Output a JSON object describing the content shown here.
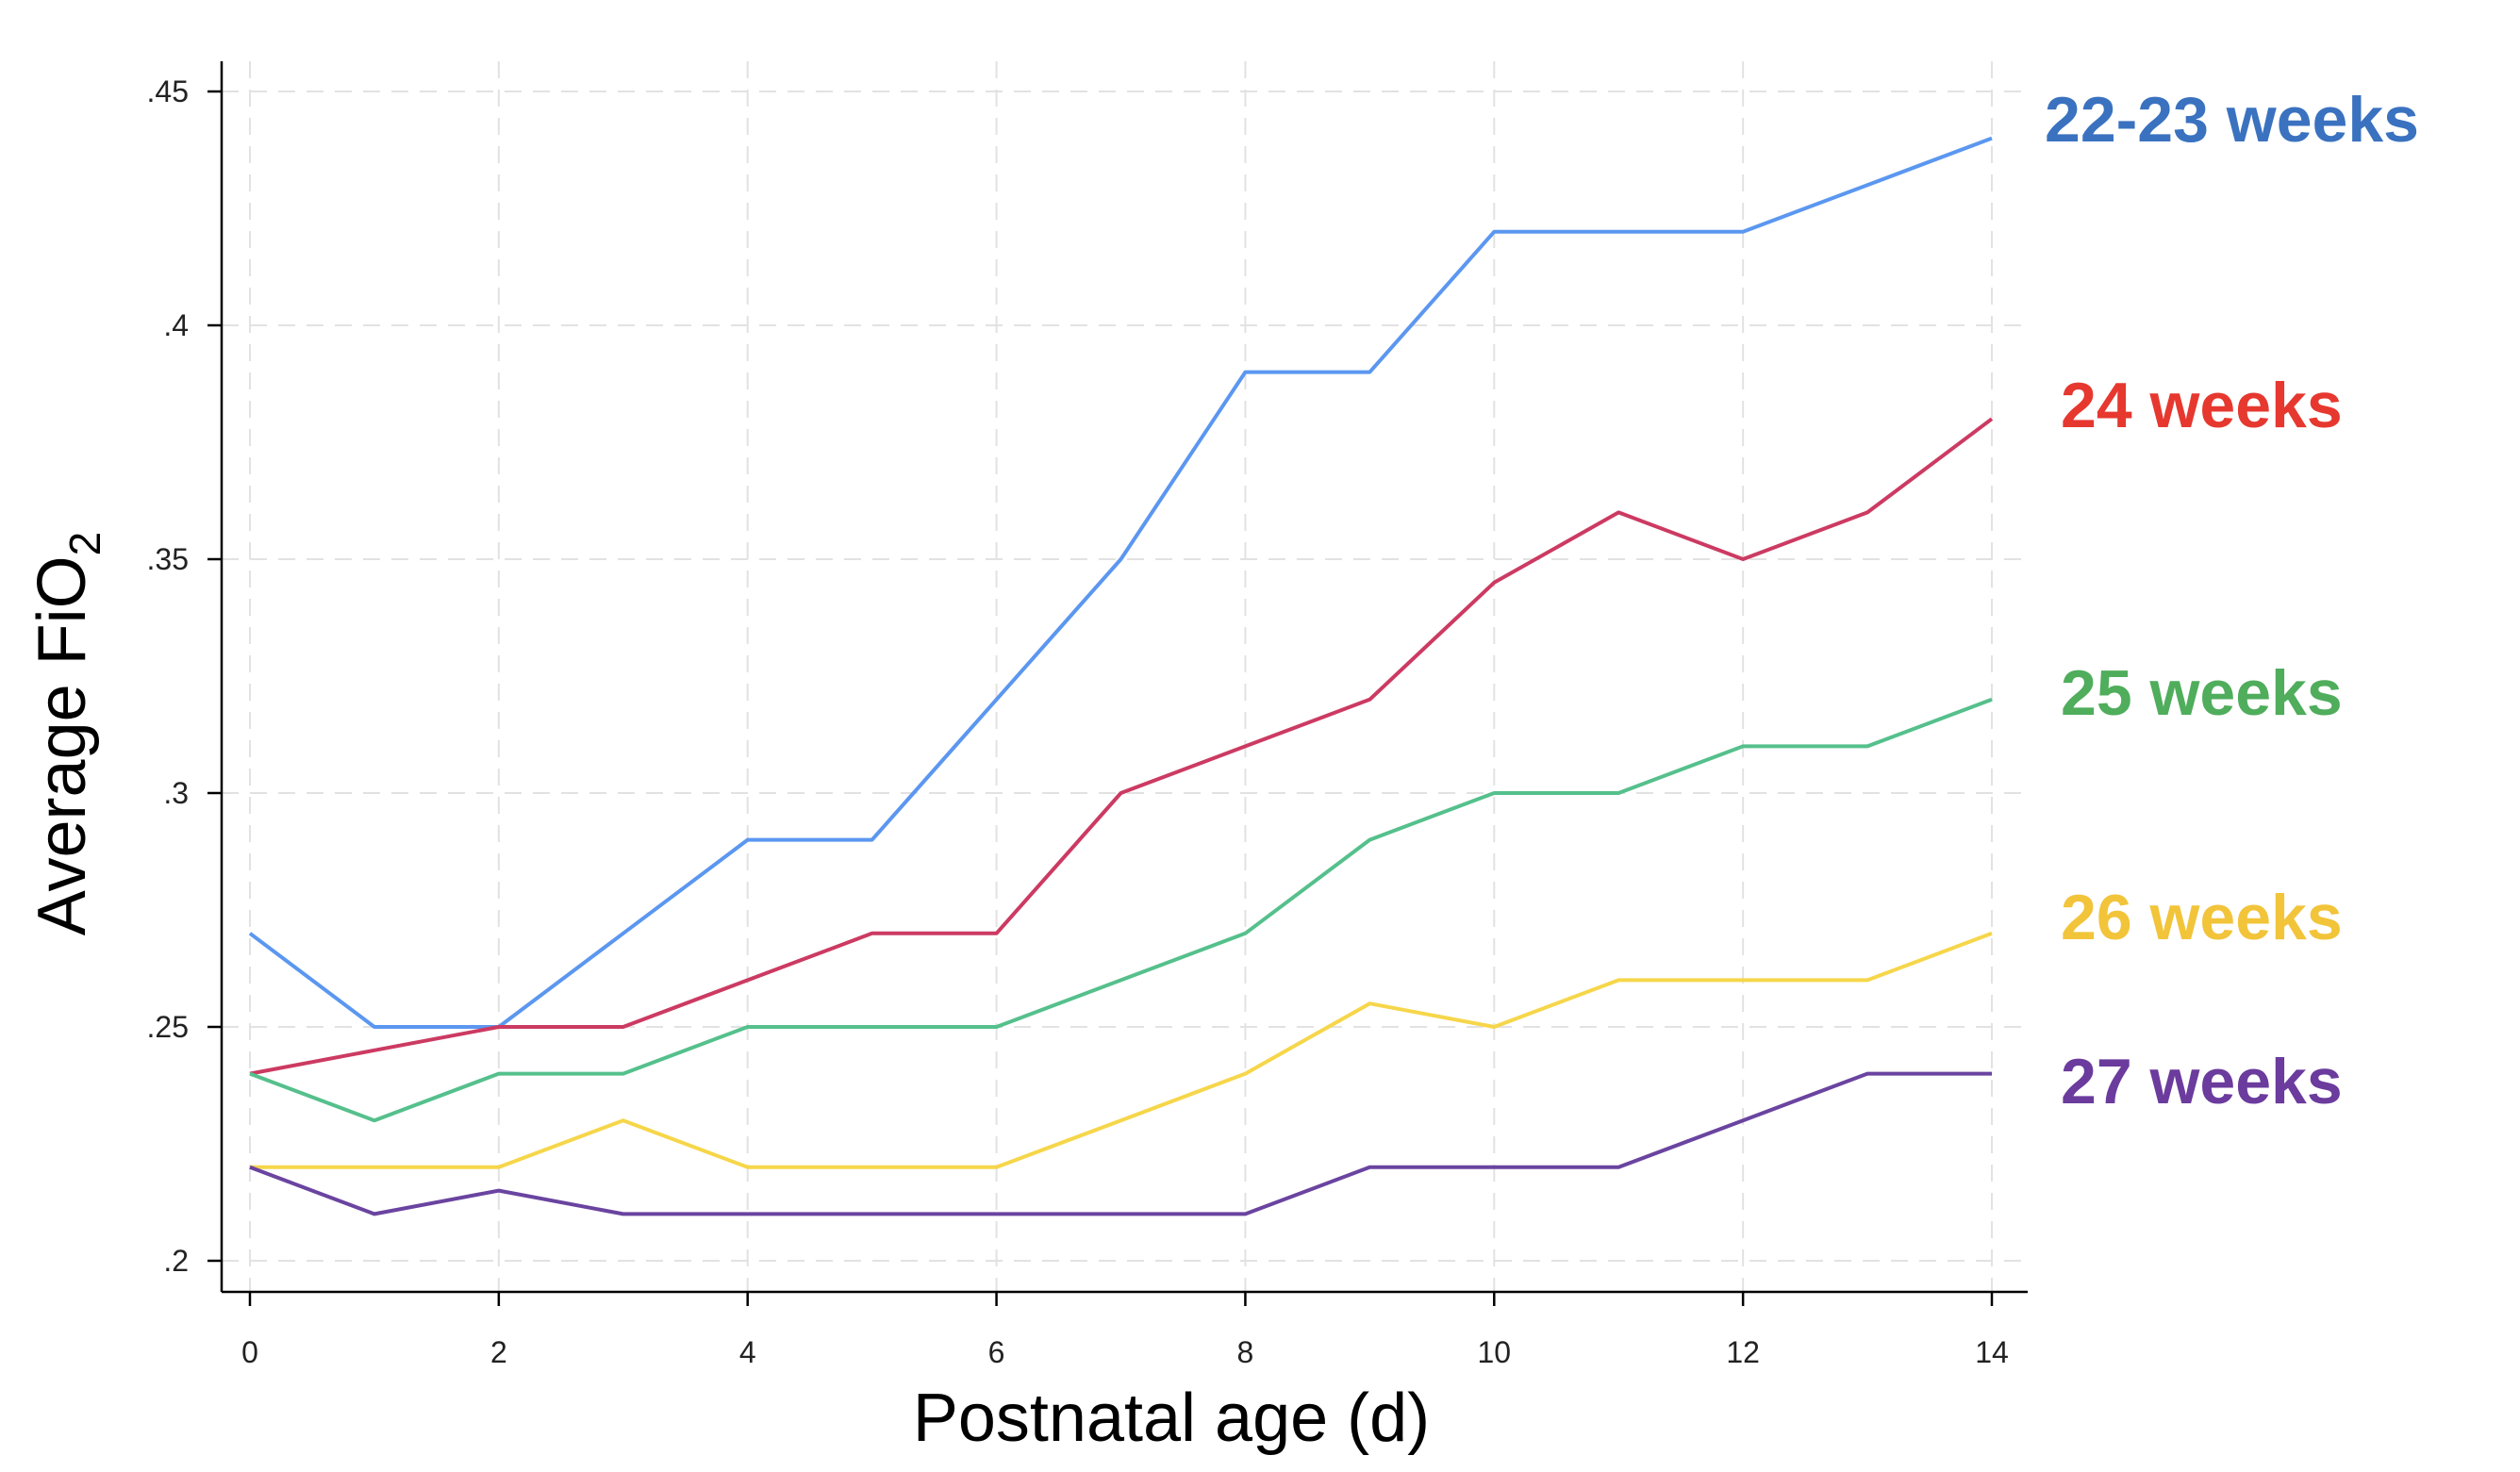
{
  "chart_data": {
    "type": "line",
    "xlabel": "Postnatal age (d)",
    "ylabel": "Average FiO",
    "ylabel_subscript": "2",
    "xlim": [
      0,
      14
    ],
    "ylim": [
      0.2,
      0.45
    ],
    "x_ticks": [
      0,
      2,
      4,
      6,
      8,
      10,
      12,
      14
    ],
    "x_tick_labels": [
      "0",
      "2",
      "4",
      "6",
      "8",
      "10",
      "12",
      "14"
    ],
    "y_ticks": [
      0.2,
      0.25,
      0.3,
      0.35,
      0.4,
      0.45
    ],
    "y_tick_labels": [
      ".2",
      ".25",
      ".3",
      ".35",
      ".4",
      ".45"
    ],
    "grid": true,
    "legend": "direct labels at right",
    "x": [
      0,
      1,
      2,
      3,
      4,
      5,
      6,
      7,
      8,
      9,
      10,
      11,
      12,
      13,
      14
    ],
    "series": [
      {
        "name": "22-23 weeks",
        "color": "#5b97f0",
        "label_color": "#3a72c0",
        "values": [
          0.27,
          0.25,
          0.25,
          0.27,
          0.29,
          0.29,
          0.32,
          0.35,
          0.39,
          0.39,
          0.42,
          0.42,
          0.42,
          0.43,
          0.44
        ]
      },
      {
        "name": "24 weeks",
        "color": "#cc3a62",
        "label_color": "#e6382f",
        "values": [
          0.24,
          0.245,
          0.25,
          0.25,
          0.26,
          0.27,
          0.27,
          0.3,
          0.31,
          0.32,
          0.345,
          0.36,
          0.35,
          0.36,
          0.38
        ]
      },
      {
        "name": "25 weeks",
        "color": "#55c08c",
        "label_color": "#4fad5c",
        "values": [
          0.24,
          0.23,
          0.24,
          0.24,
          0.25,
          0.25,
          0.25,
          0.26,
          0.27,
          0.29,
          0.3,
          0.3,
          0.31,
          0.31,
          0.32
        ]
      },
      {
        "name": "26 weeks",
        "color": "#f6d64a",
        "label_color": "#f2c43a",
        "values": [
          0.22,
          0.22,
          0.22,
          0.23,
          0.22,
          0.22,
          0.22,
          0.23,
          0.24,
          0.255,
          0.25,
          0.26,
          0.26,
          0.26,
          0.27
        ]
      },
      {
        "name": "27 weeks",
        "color": "#6a44a0",
        "label_color": "#6b3b9d",
        "values": [
          0.22,
          0.21,
          0.215,
          0.21,
          0.21,
          0.21,
          0.21,
          0.21,
          0.21,
          0.22,
          0.22,
          0.22,
          0.23,
          0.24,
          0.24
        ]
      }
    ]
  }
}
